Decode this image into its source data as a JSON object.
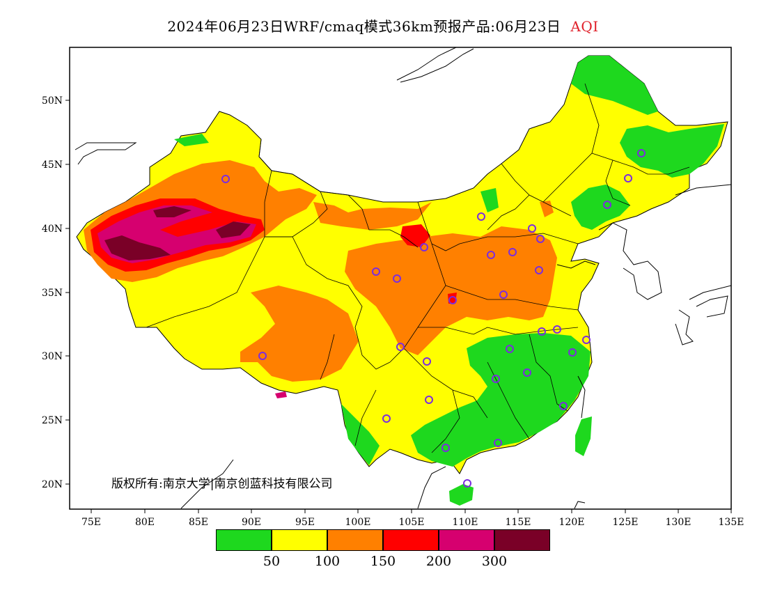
{
  "title": {
    "main": "2024年06月23日WRF/cmaq模式36km预报产品:06月23日",
    "variable": "AQI"
  },
  "copyright": "版权所有:南京大学|南京创蓝科技有限公司",
  "axes": {
    "lon_ticks": [
      "75E",
      "80E",
      "85E",
      "90E",
      "95E",
      "100E",
      "105E",
      "110E",
      "115E",
      "120E",
      "125E",
      "130E",
      "135E"
    ],
    "lat_ticks": [
      "50N",
      "45N",
      "40N",
      "35N",
      "30N",
      "25N",
      "20N"
    ]
  },
  "legend": {
    "colors": [
      "#1ed81e",
      "#ffff00",
      "#ff8000",
      "#ff0000",
      "#d6006f",
      "#7a0027"
    ],
    "labels": [
      "50",
      "100",
      "150",
      "200",
      "300"
    ]
  },
  "colors": {
    "good": "#1ed81e",
    "moderate": "#ffff00",
    "unhealthy_sensitive": "#ff8000",
    "unhealthy": "#ff0000",
    "very_unhealthy": "#d6006f",
    "hazardous": "#7a0027",
    "station_marker": "#7b2ce0"
  }
}
